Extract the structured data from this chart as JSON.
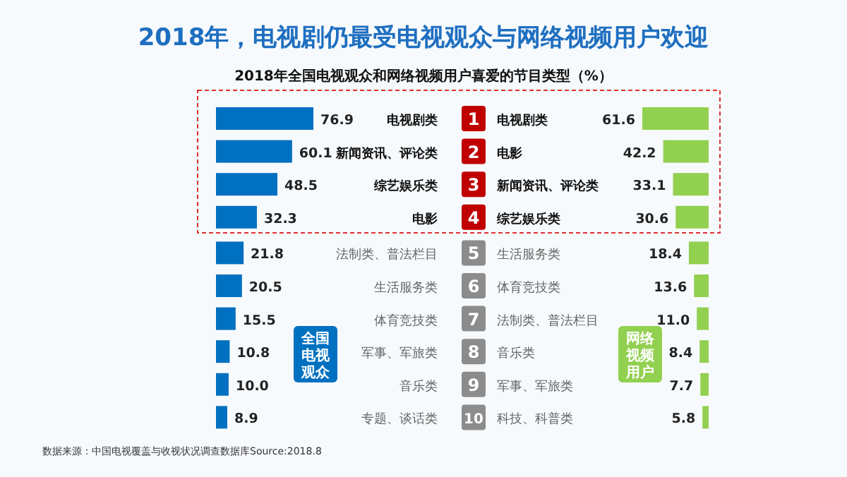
{
  "chart_data": [
    {
      "type": "bar",
      "orientation": "horizontal",
      "title": "2018年，电视剧仍最受电视观众与网络视频用户欢迎",
      "subtitle": "2018年全国电视观众和网络视频用户喜爱的节目类型（%）",
      "categories": [
        "电视剧类",
        "新闻资讯、评论类",
        "综艺娱乐类",
        "电影",
        "法制类、普法栏目",
        "生活服务类",
        "体育竞技类",
        "军事、军旅类",
        "音乐类",
        "专题、谈话类"
      ],
      "series": [
        {
          "name": "全国电视观众",
          "color": "#0070c0",
          "values": [
            76.9,
            60.1,
            48.5,
            32.3,
            21.8,
            20.5,
            15.5,
            10.8,
            10.0,
            8.9
          ],
          "value_labels": [
            "76.9",
            "60.1",
            "48.5",
            "32.3",
            "21.8",
            "20.5",
            "15.5",
            "10.8",
            "10.0",
            "8.9"
          ]
        }
      ],
      "data_labels": true,
      "annotations": [
        "数据来源：中国电视覆盖与收视状况调查数据库Source:2018.8"
      ]
    },
    {
      "type": "bar",
      "orientation": "horizontal",
      "categories": [
        "电视剧类",
        "电影",
        "新闻资讯、评论类",
        "综艺娱乐类",
        "生活服务类",
        "体育竞技类",
        "法制类、普法栏目",
        "音乐类",
        "军事、军旅类",
        "科技、科普类"
      ],
      "series": [
        {
          "name": "网络视频用户",
          "color": "#92d050",
          "values": [
            61.6,
            42.2,
            33.1,
            30.6,
            18.4,
            13.6,
            11.0,
            8.4,
            7.7,
            5.8
          ],
          "value_labels": [
            "61.6",
            "42.2",
            "33.1",
            "30.6",
            "18.4",
            "13.6",
            "11.0",
            "8.4",
            "7.7",
            "5.8"
          ]
        }
      ],
      "data_labels": true,
      "annotations": [
        "1",
        "2",
        "3",
        "4",
        "5",
        "6",
        "7",
        "8",
        "9",
        "10"
      ]
    }
  ]
}
